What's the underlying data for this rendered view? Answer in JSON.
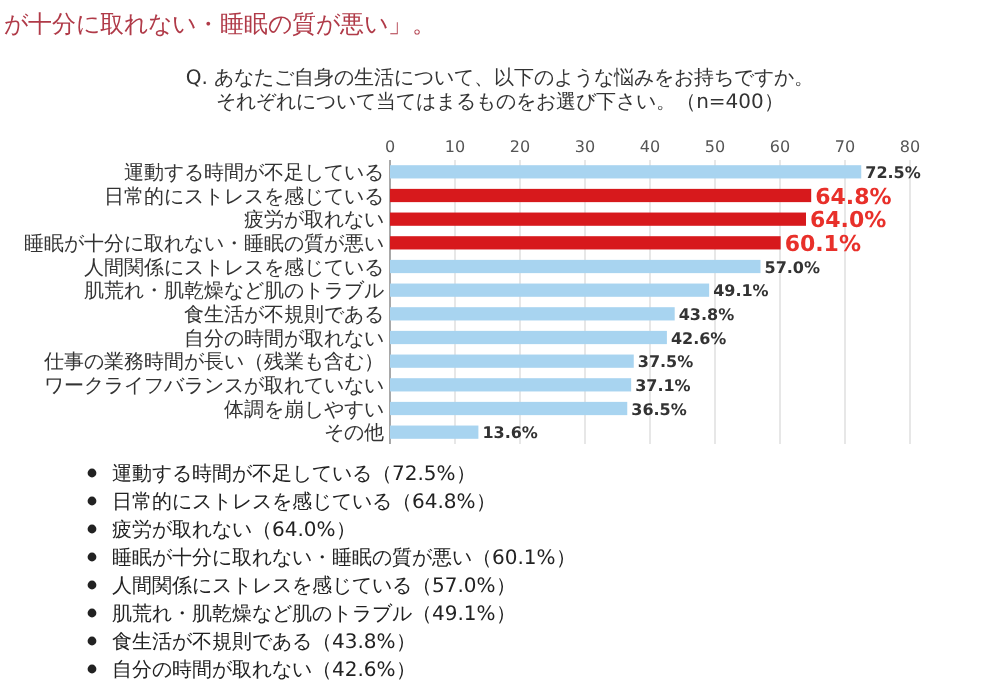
{
  "chart_data": {
    "type": "bar",
    "orientation": "horizontal",
    "title": "Q. あなたご自身の生活について、以下のような悩みをお持ちですか。それぞれについて当てはまるものをお選び下さい。（n=400）",
    "categories": [
      "運動する時間が不足している",
      "日常的にストレスを感じている",
      "疲労が取れない",
      "睡眠が十分に取れない・睡眠の質が悪い",
      "人間関係にストレスを感じている",
      "肌荒れ・肌乾燥など肌のトラブル",
      "食生活が不規則である",
      "自分の時間が取れない",
      "仕事の業務時間が長い（残業も含む）",
      "ワークライフバランスが取れていない",
      "体調を崩しやすい",
      "その他"
    ],
    "values": [
      72.5,
      64.8,
      64.0,
      60.1,
      57.0,
      49.1,
      43.8,
      42.6,
      37.5,
      37.1,
      36.5,
      13.6
    ],
    "colors": [
      "#a8d4f0",
      "#d7191c",
      "#d7191c",
      "#d7191c",
      "#a8d4f0",
      "#a8d4f0",
      "#a8d4f0",
      "#a8d4f0",
      "#a8d4f0",
      "#a8d4f0",
      "#a8d4f0",
      "#a8d4f0"
    ],
    "value_labels": [
      "72.5%",
      "64.8%",
      "64.0%",
      "60.1%",
      "57.0%",
      "49.1%",
      "43.8%",
      "42.6%",
      "37.5%",
      "37.1%",
      "36.5%",
      "13.6%"
    ],
    "xlim": [
      0,
      80
    ],
    "xticks": [
      0,
      10,
      20,
      30,
      40,
      50,
      60,
      70,
      80
    ],
    "grid": "x",
    "annotations": [
      "が十分に取れない・睡眠の質が悪い」。",
      "運動する時間が不足している（72.5%）",
      "日常的にストレスを感じている（64.8%）",
      "疲労が取れない（64.0%）",
      "睡眠が十分に取れない・睡眠の質が悪い（60.1%）",
      "人間関係にストレスを感じている（57.0%）",
      "肌荒れ・肌乾燥など肌のトラブル（49.1%）",
      "食生活が不規則である（43.8%）",
      "自分の時間が取れない（42.6%）"
    ]
  }
}
